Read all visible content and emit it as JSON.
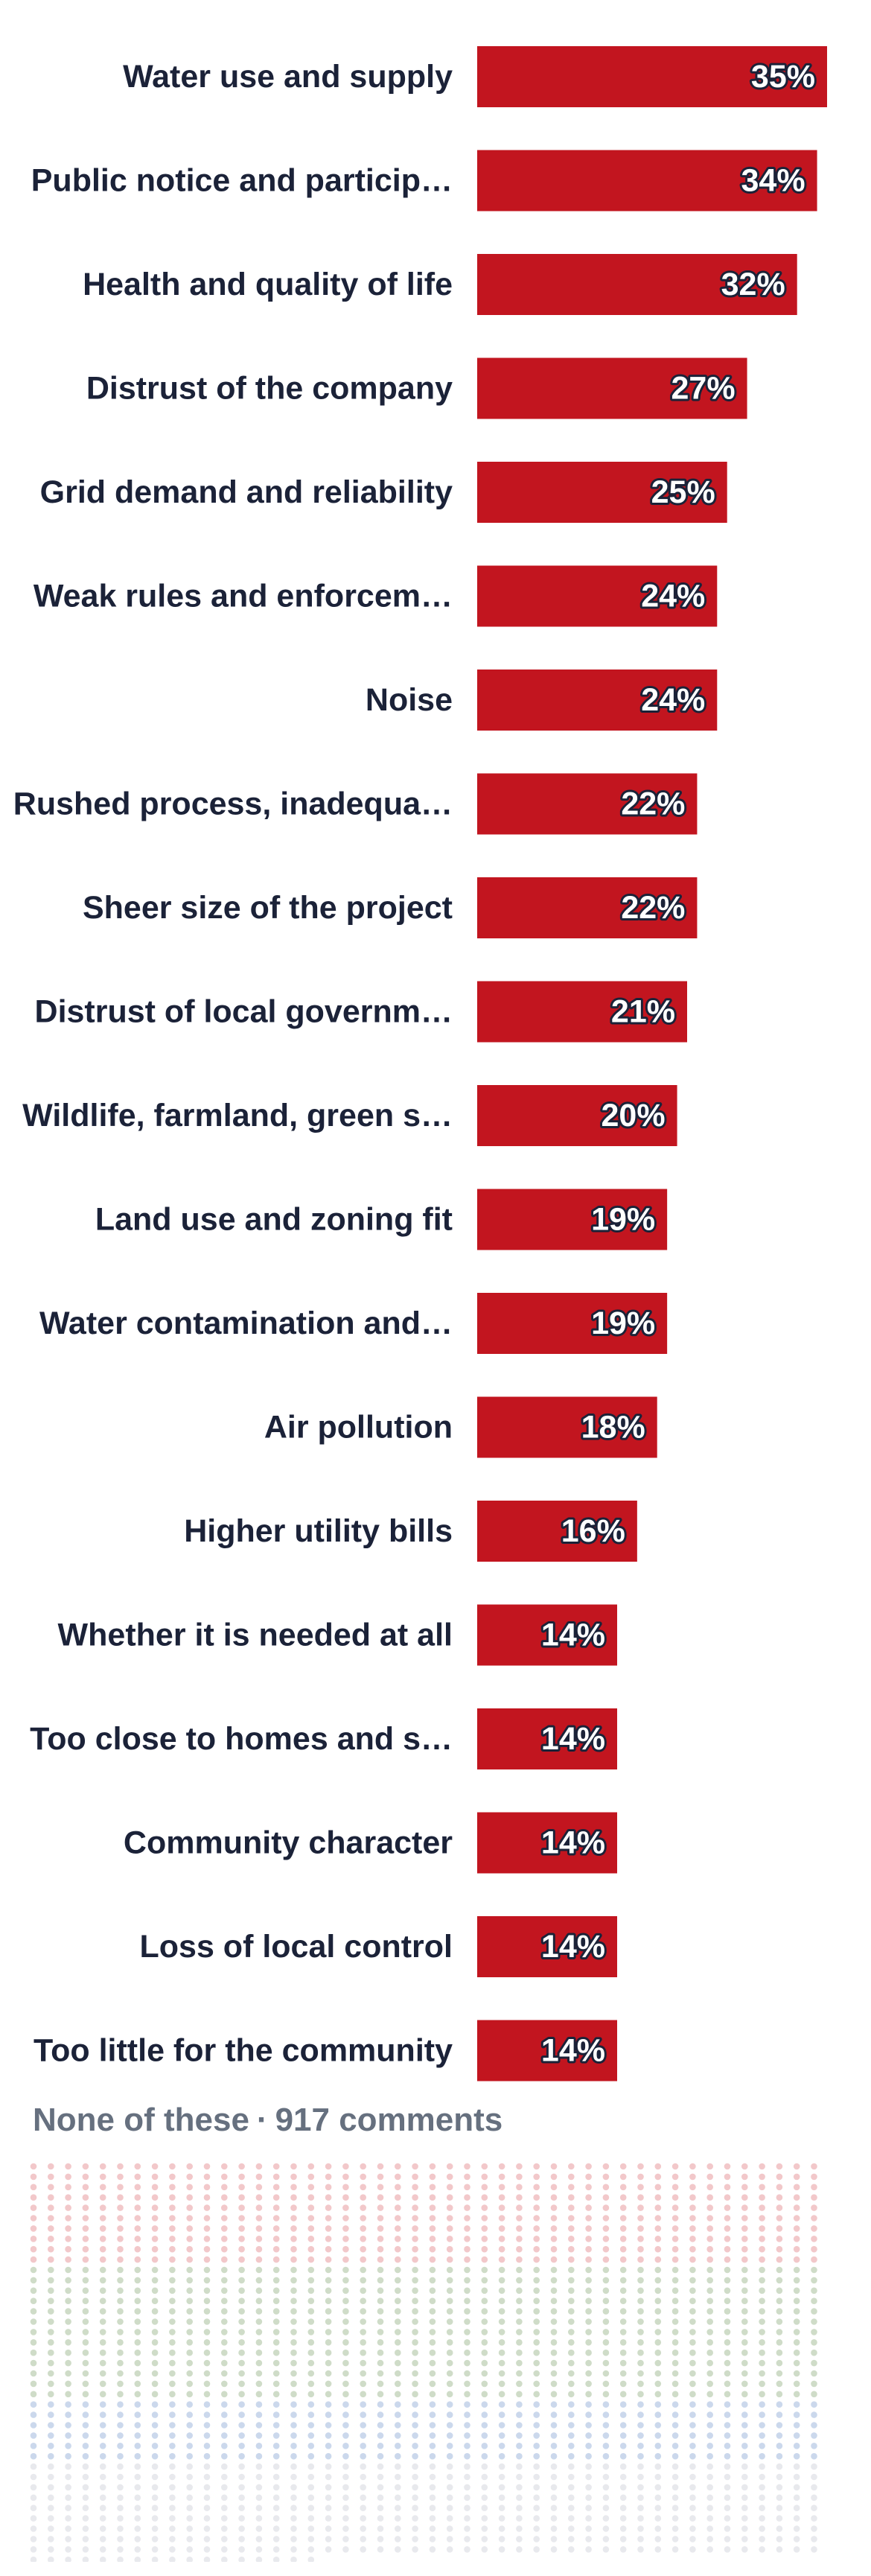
{
  "chart_data": {
    "type": "bar",
    "orientation": "horizontal",
    "categories": [
      "Water use and supply",
      "Public notice and particip…",
      "Health and quality of life",
      "Distrust of the company",
      "Grid demand and reliability",
      "Weak rules and enforcem…",
      "Noise",
      "Rushed process, inadequa…",
      "Sheer size of the project",
      "Distrust of local governm…",
      "Wildlife, farmland, green s…",
      "Land use and zoning fit",
      "Water contamination and…",
      "Air pollution",
      "Higher utility bills",
      "Whether it is needed at all",
      "Too close to homes and s…",
      "Community character",
      "Loss of local control",
      "Too little for the community"
    ],
    "values": [
      35,
      34,
      32,
      27,
      25,
      24,
      24,
      22,
      22,
      21,
      20,
      19,
      19,
      18,
      16,
      14,
      14,
      14,
      14,
      14
    ],
    "value_labels": [
      "35%",
      "34%",
      "32%",
      "27%",
      "25%",
      "24%",
      "24%",
      "22%",
      "22%",
      "21%",
      "20%",
      "19%",
      "19%",
      "18%",
      "16%",
      "14%",
      "14%",
      "14%",
      "14%",
      "14%"
    ],
    "units": "%",
    "bar_color": "#c2151f",
    "xlim": [
      0,
      35
    ],
    "grid": false,
    "legend": "none"
  },
  "none_section": {
    "label": "None of these",
    "separator": "·",
    "count_text": "917 comments"
  },
  "dot_field": {
    "colors": [
      "#f2c8ca",
      "#cfdcc8",
      "#cbd8ec",
      "#e8e9ed"
    ]
  }
}
